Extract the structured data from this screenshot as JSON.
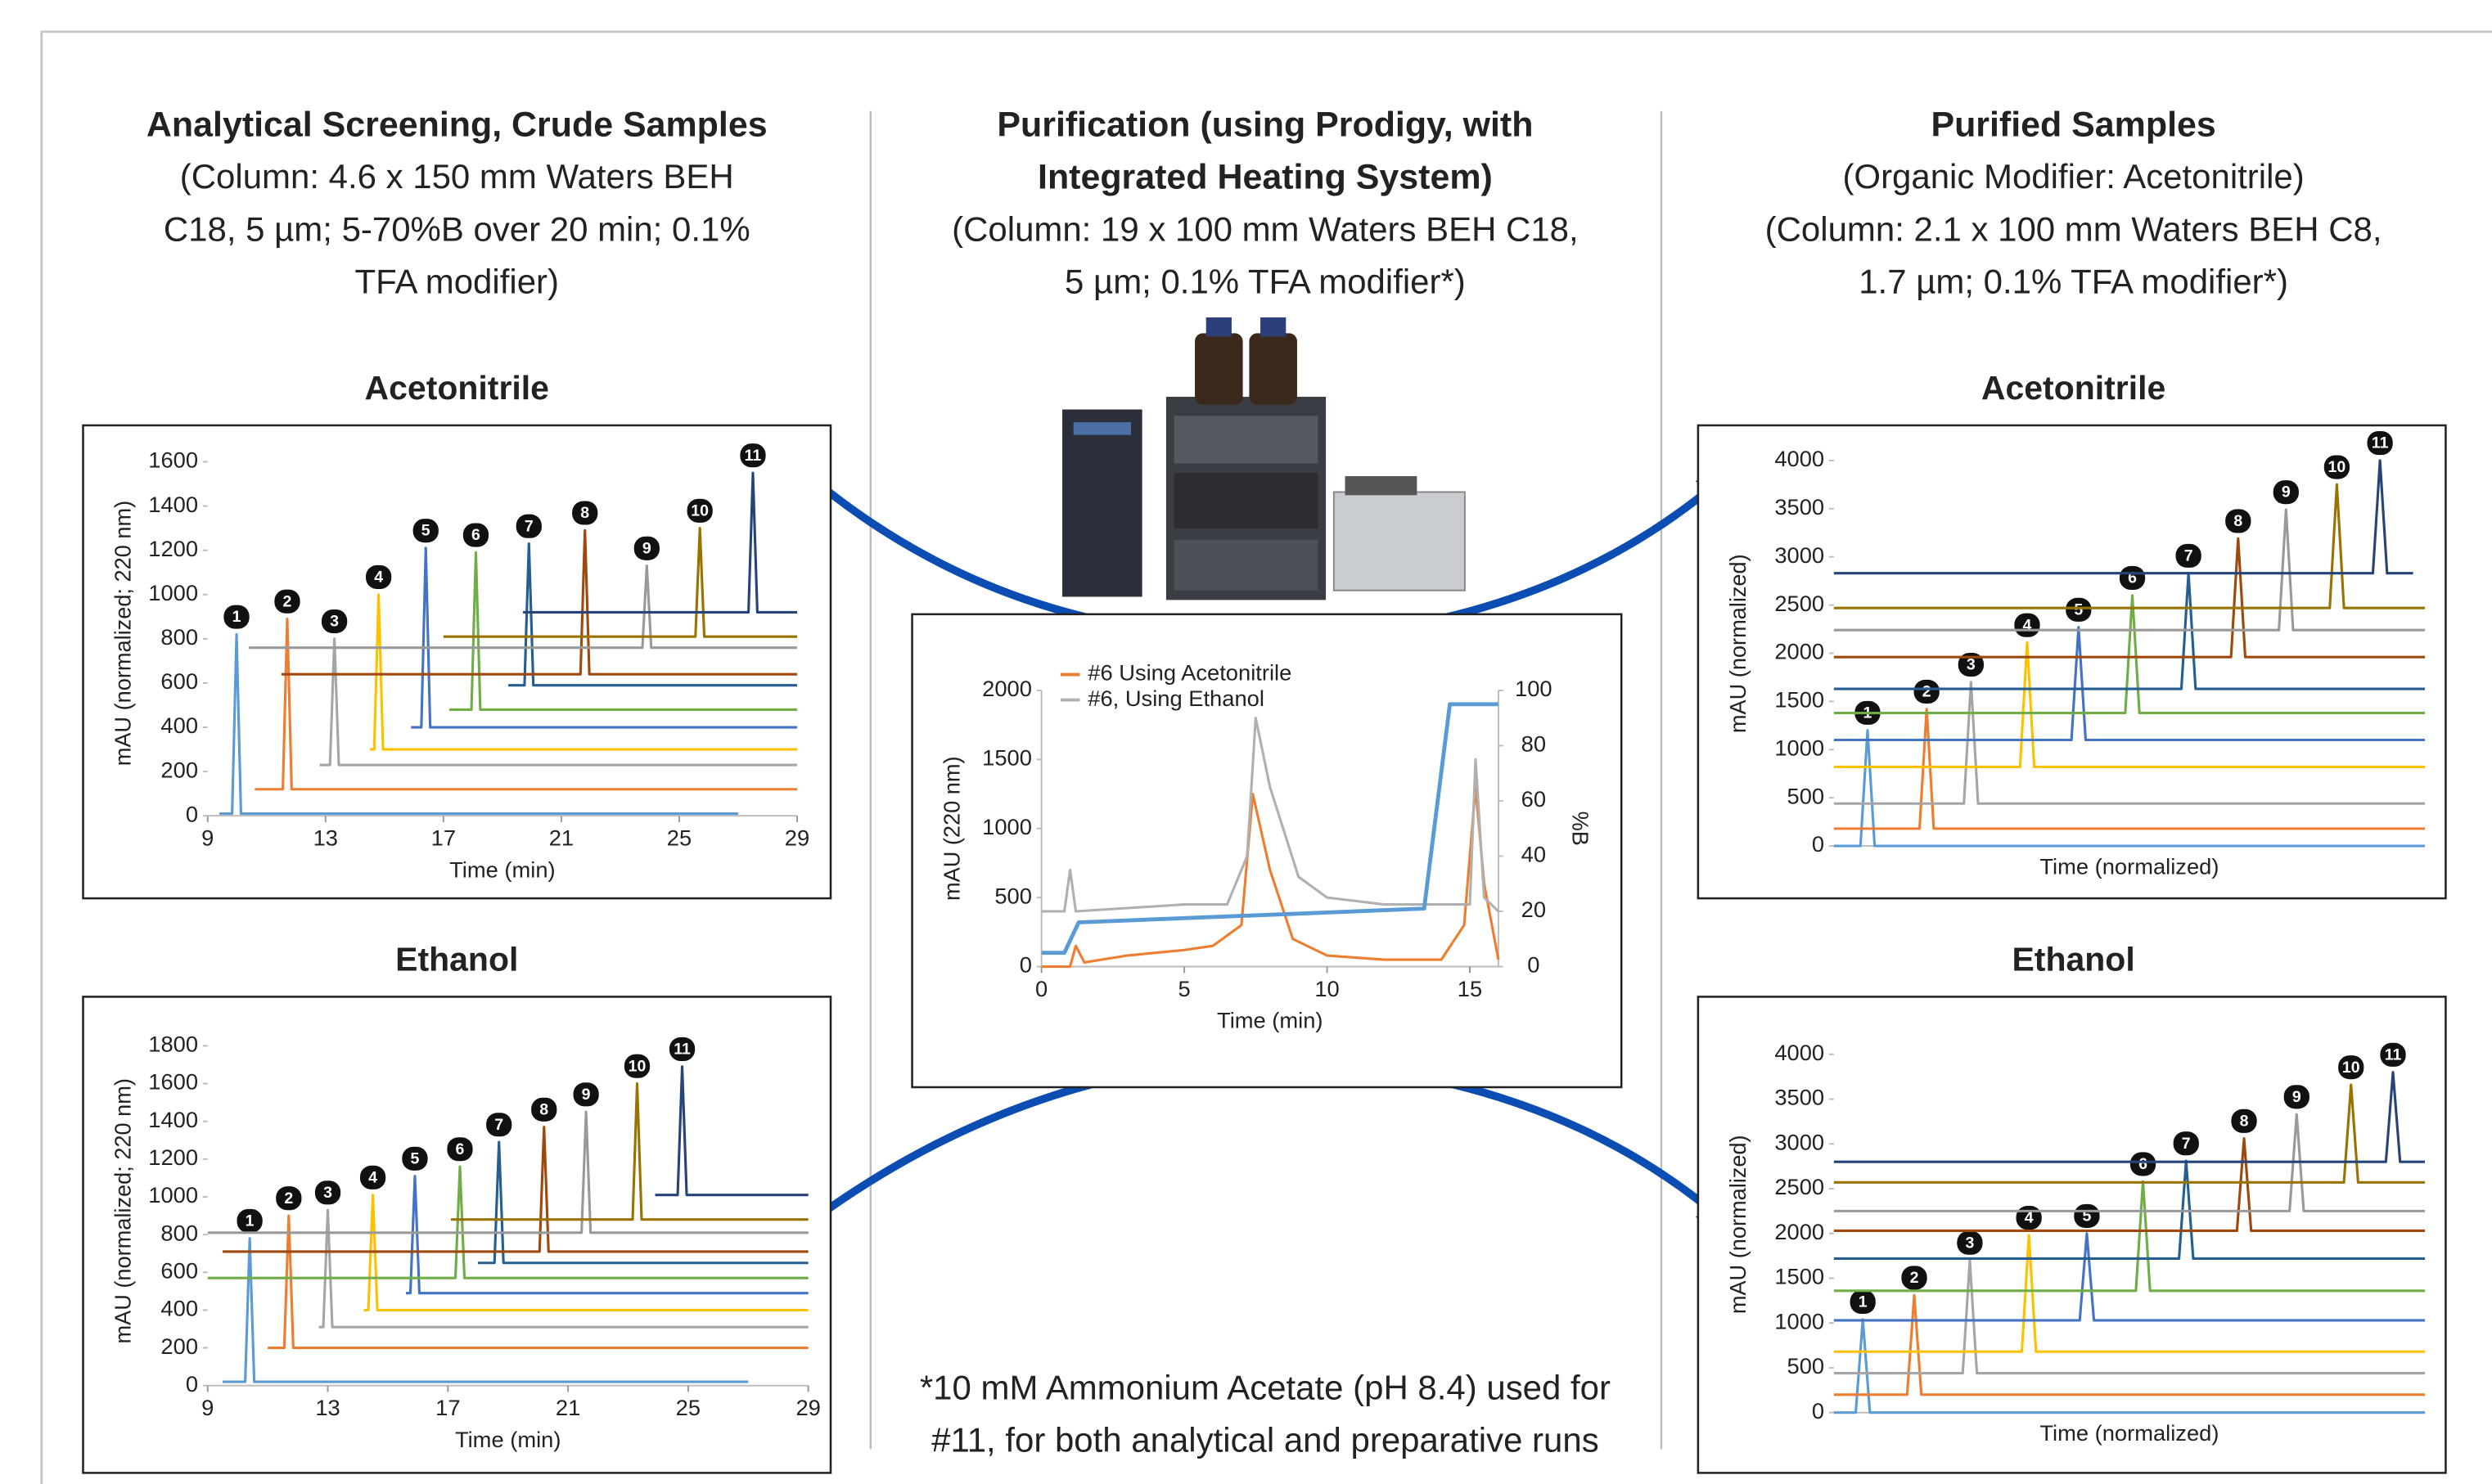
{
  "headers": {
    "left": {
      "title": "Analytical Screening, Crude Samples",
      "lines": [
        "(Column: 4.6 x 150 mm Waters BEH",
        "C18, 5 µm; 5-70%B over 20 min; 0.1%",
        "TFA modifier)"
      ]
    },
    "middle": {
      "title_lines": [
        "Purification (using Prodigy, with",
        "Integrated Heating System)"
      ],
      "lines": [
        "(Column: 19 x 100 mm Waters BEH C18,",
        "5 µm; 0.1% TFA modifier*)"
      ]
    },
    "right": {
      "title": "Purified Samples",
      "lines": [
        "(Organic Modifier: Acetonitrile)",
        "(Column: 2.1 x 100 mm Waters BEH C8,",
        "1.7 µm; 0.1% TFA modifier*)"
      ]
    }
  },
  "footnote": [
    "*10 mM Ammonium Acetate (pH 8.4) used for",
    "#11, for both analytical and preparative runs"
  ],
  "chart_data": [
    {
      "type": "line",
      "title": "Acetonitrile",
      "xlabel": "Time (min)",
      "ylabel": "mAU (normalized; 220 nm)",
      "xlim": [
        9,
        29
      ],
      "xticks": [
        9,
        13,
        17,
        21,
        25,
        29
      ],
      "ylim": [
        0,
        1650
      ],
      "yticks": [
        0,
        200,
        400,
        600,
        800,
        1000,
        1200,
        1400,
        1600
      ],
      "series": [
        {
          "label": "1",
          "color": "#5b9bd5",
          "x": [
            9.4,
            9.83,
            9.98,
            10.13,
            27
          ],
          "values": [
            10,
            10,
            820,
            10,
            10
          ]
        },
        {
          "label": "2",
          "color": "#ed7d31",
          "x": [
            10.6,
            11.55,
            11.7,
            11.85,
            29
          ],
          "values": [
            120,
            120,
            890,
            120,
            120
          ]
        },
        {
          "label": "3",
          "color": "#a5a5a5",
          "x": [
            12.8,
            13.15,
            13.3,
            13.45,
            29
          ],
          "values": [
            230,
            230,
            800,
            230,
            230
          ]
        },
        {
          "label": "4",
          "color": "#ffc000",
          "x": [
            14.5,
            14.65,
            14.8,
            14.95,
            29
          ],
          "values": [
            300,
            300,
            1000,
            300,
            300
          ]
        },
        {
          "label": "5",
          "color": "#4472c4",
          "x": [
            15.9,
            16.25,
            16.4,
            16.55,
            29
          ],
          "values": [
            400,
            400,
            1210,
            400,
            400
          ]
        },
        {
          "label": "6",
          "color": "#70ad47",
          "x": [
            17.2,
            17.95,
            18.1,
            18.25,
            29
          ],
          "values": [
            480,
            480,
            1190,
            480,
            480
          ]
        },
        {
          "label": "7",
          "color": "#255e91",
          "x": [
            19.2,
            19.75,
            19.9,
            20.05,
            29
          ],
          "values": [
            590,
            590,
            1230,
            590,
            590
          ]
        },
        {
          "label": "8",
          "color": "#9e480e",
          "x": [
            11.5,
            21.65,
            21.8,
            21.95,
            29
          ],
          "values": [
            640,
            640,
            1290,
            640,
            640
          ]
        },
        {
          "label": "9",
          "color": "#999999",
          "x": [
            10.4,
            23.75,
            23.9,
            24.05,
            29
          ],
          "values": [
            760,
            760,
            1130,
            760,
            760
          ]
        },
        {
          "label": "10",
          "color": "#997300",
          "x": [
            17.0,
            25.55,
            25.7,
            25.85,
            29
          ],
          "values": [
            810,
            810,
            1300,
            810,
            810
          ]
        },
        {
          "label": "11",
          "color": "#264478",
          "x": [
            19.7,
            27.35,
            27.5,
            27.65,
            29
          ],
          "values": [
            920,
            920,
            1550,
            920,
            920
          ]
        }
      ]
    },
    {
      "type": "line",
      "title": "Ethanol",
      "xlabel": "Time (min)",
      "ylabel": "mAU (normalized; 220 nm)",
      "xlim": [
        9,
        29
      ],
      "xticks": [
        9,
        13,
        17,
        21,
        25,
        29
      ],
      "ylim": [
        0,
        1850
      ],
      "yticks": [
        0,
        200,
        400,
        600,
        800,
        1000,
        1200,
        1400,
        1600,
        1800
      ],
      "series": [
        {
          "label": "1",
          "color": "#5b9bd5",
          "x": [
            9.5,
            10.25,
            10.4,
            10.55,
            27
          ],
          "values": [
            20,
            20,
            780,
            20,
            20
          ]
        },
        {
          "label": "2",
          "color": "#ed7d31",
          "x": [
            11.0,
            11.55,
            11.7,
            11.85,
            29
          ],
          "values": [
            200,
            200,
            900,
            200,
            200
          ]
        },
        {
          "label": "3",
          "color": "#a5a5a5",
          "x": [
            12.7,
            12.85,
            13.0,
            13.15,
            29
          ],
          "values": [
            310,
            310,
            930,
            310,
            310
          ]
        },
        {
          "label": "4",
          "color": "#ffc000",
          "x": [
            14.2,
            14.35,
            14.5,
            14.65,
            29
          ],
          "values": [
            400,
            400,
            1010,
            400,
            400
          ]
        },
        {
          "label": "5",
          "color": "#4472c4",
          "x": [
            15.6,
            15.75,
            15.9,
            16.05,
            29
          ],
          "values": [
            490,
            490,
            1110,
            490,
            490
          ]
        },
        {
          "label": "6",
          "color": "#70ad47",
          "x": [
            9,
            17.25,
            17.4,
            17.55,
            29
          ],
          "values": [
            570,
            570,
            1160,
            570,
            570
          ]
        },
        {
          "label": "7",
          "color": "#255e91",
          "x": [
            18,
            18.55,
            18.7,
            18.85,
            29
          ],
          "values": [
            650,
            650,
            1290,
            650,
            650
          ]
        },
        {
          "label": "8",
          "color": "#9e480e",
          "x": [
            9.5,
            20.05,
            20.2,
            20.35,
            29
          ],
          "values": [
            710,
            710,
            1370,
            710,
            710
          ]
        },
        {
          "label": "9",
          "color": "#999999",
          "x": [
            9,
            21.45,
            21.6,
            21.75,
            29
          ],
          "values": [
            810,
            810,
            1450,
            810,
            810
          ]
        },
        {
          "label": "10",
          "color": "#997300",
          "x": [
            17.1,
            23.15,
            23.3,
            23.45,
            29
          ],
          "values": [
            880,
            880,
            1600,
            880,
            880
          ]
        },
        {
          "label": "11",
          "color": "#264478",
          "x": [
            23.9,
            24.65,
            24.8,
            24.95,
            29
          ],
          "values": [
            1010,
            1010,
            1690,
            1010,
            1010
          ]
        }
      ]
    },
    {
      "type": "line",
      "xlabel": "Time (min)",
      "ylabel": "mAU (220 nm)",
      "y2label": "%B",
      "xlim": [
        0,
        16
      ],
      "xticks": [
        0,
        5,
        10,
        15
      ],
      "ylim": [
        0,
        2000
      ],
      "yticks": [
        0,
        500,
        1000,
        1500,
        2000
      ],
      "y2lim": [
        0,
        100
      ],
      "y2ticks": [
        0,
        20,
        40,
        60,
        80,
        100
      ],
      "series": [
        {
          "name": "#6  Using Acetonitrile",
          "color": "#ed7d31",
          "x": [
            0,
            1,
            1.2,
            1.5,
            3,
            5,
            6,
            7,
            7.4,
            8,
            8.8,
            10,
            12,
            14,
            14.8,
            15.2,
            15.5,
            16
          ],
          "values": [
            0,
            0,
            150,
            30,
            80,
            120,
            150,
            300,
            1250,
            700,
            200,
            80,
            50,
            50,
            300,
            1300,
            600,
            50
          ]
        },
        {
          "name": "#6, Using Ethanol",
          "color": "#b0b0b0",
          "x": [
            0,
            0.8,
            1,
            1.2,
            5,
            6.5,
            7.2,
            7.5,
            8,
            9,
            10,
            12,
            14,
            15,
            15.2,
            15.5,
            16
          ],
          "values": [
            400,
            400,
            700,
            400,
            450,
            450,
            800,
            1800,
            1300,
            650,
            500,
            450,
            450,
            450,
            1500,
            500,
            400
          ]
        },
        {
          "color": "#5b9bd5",
          "axis": "y2",
          "x": [
            0,
            0.8,
            1.3,
            13.4,
            14.3,
            16
          ],
          "values": [
            5,
            5,
            16,
            21,
            95,
            95
          ]
        }
      ]
    },
    {
      "type": "line",
      "title": "Acetonitrile",
      "xlabel": "Time (normalized)",
      "ylabel": "mAU (normalized)",
      "xlim": [
        0,
        1
      ],
      "ylim": [
        0,
        4200
      ],
      "yticks": [
        0,
        500,
        1000,
        1500,
        2000,
        2500,
        3000,
        3500,
        4000
      ],
      "series": [
        {
          "label": "1",
          "color": "#5b9bd5",
          "x": [
            0,
            0.045,
            0.057,
            0.069,
            1
          ],
          "values": [
            0,
            0,
            1200,
            0,
            0
          ]
        },
        {
          "label": "2",
          "color": "#ed7d31",
          "x": [
            0,
            0.145,
            0.157,
            0.169,
            1
          ],
          "values": [
            180,
            180,
            1420,
            180,
            180
          ]
        },
        {
          "label": "3",
          "color": "#a5a5a5",
          "x": [
            0,
            0.22,
            0.232,
            0.244,
            1
          ],
          "values": [
            440,
            440,
            1700,
            440,
            440
          ]
        },
        {
          "label": "4",
          "color": "#ffc000",
          "x": [
            0,
            0.315,
            0.327,
            0.339,
            1
          ],
          "values": [
            820,
            820,
            2110,
            820,
            820
          ]
        },
        {
          "label": "5",
          "color": "#4472c4",
          "x": [
            0,
            0.402,
            0.414,
            0.426,
            1
          ],
          "values": [
            1100,
            1100,
            2270,
            1100,
            1100
          ]
        },
        {
          "label": "6",
          "color": "#70ad47",
          "x": [
            0,
            0.493,
            0.505,
            0.517,
            1
          ],
          "values": [
            1380,
            1380,
            2600,
            1380,
            1380
          ]
        },
        {
          "label": "7",
          "color": "#255e91",
          "x": [
            0,
            0.588,
            0.6,
            0.612,
            1
          ],
          "values": [
            1630,
            1630,
            2830,
            1630,
            1630
          ]
        },
        {
          "label": "8",
          "color": "#9e480e",
          "x": [
            0,
            0.672,
            0.684,
            0.696,
            1
          ],
          "values": [
            1960,
            1960,
            3190,
            1960,
            1960
          ]
        },
        {
          "label": "9",
          "color": "#999999",
          "x": [
            0,
            0.753,
            0.765,
            0.777,
            1
          ],
          "values": [
            2240,
            2240,
            3490,
            2240,
            2240
          ]
        },
        {
          "label": "10",
          "color": "#997300",
          "x": [
            0,
            0.839,
            0.851,
            0.863,
            1
          ],
          "values": [
            2470,
            2470,
            3750,
            2470,
            2470
          ]
        },
        {
          "label": "11",
          "color": "#264478",
          "x": [
            0,
            0.912,
            0.924,
            0.936,
            0.98
          ],
          "values": [
            2830,
            2830,
            4000,
            2830,
            2830
          ]
        }
      ]
    },
    {
      "type": "line",
      "title": "Ethanol",
      "xlabel": "Time (normalized)",
      "ylabel": "mAU (normalized)",
      "xlim": [
        0,
        1
      ],
      "ylim": [
        0,
        4200
      ],
      "yticks": [
        0,
        500,
        1000,
        1500,
        2000,
        2500,
        3000,
        3500,
        4000
      ],
      "series": [
        {
          "label": "1",
          "color": "#5b9bd5",
          "x": [
            0,
            0.037,
            0.049,
            0.061,
            1
          ],
          "values": [
            0,
            0,
            1040,
            0,
            0
          ]
        },
        {
          "label": "2",
          "color": "#ed7d31",
          "x": [
            0,
            0.124,
            0.136,
            0.148,
            1
          ],
          "values": [
            200,
            200,
            1310,
            200,
            200
          ]
        },
        {
          "label": "3",
          "color": "#a5a5a5",
          "x": [
            0,
            0.218,
            0.23,
            0.242,
            1
          ],
          "values": [
            440,
            440,
            1700,
            440,
            440
          ]
        },
        {
          "label": "4",
          "color": "#ffc000",
          "x": [
            0,
            0.318,
            0.33,
            0.342,
            1
          ],
          "values": [
            680,
            680,
            1980,
            680,
            680
          ]
        },
        {
          "label": "5",
          "color": "#4472c4",
          "x": [
            0,
            0.416,
            0.428,
            0.44,
            1
          ],
          "values": [
            1030,
            1030,
            2000,
            1030,
            1030
          ]
        },
        {
          "label": "6",
          "color": "#70ad47",
          "x": [
            0,
            0.511,
            0.523,
            0.535,
            1
          ],
          "values": [
            1360,
            1360,
            2580,
            1360,
            1360
          ]
        },
        {
          "label": "7",
          "color": "#255e91",
          "x": [
            0,
            0.584,
            0.596,
            0.608,
            1
          ],
          "values": [
            1720,
            1720,
            2810,
            1720,
            1720
          ]
        },
        {
          "label": "8",
          "color": "#9e480e",
          "x": [
            0,
            0.682,
            0.694,
            0.706,
            1
          ],
          "values": [
            2030,
            2030,
            3060,
            2030,
            2030
          ]
        },
        {
          "label": "9",
          "color": "#999999",
          "x": [
            0,
            0.771,
            0.783,
            0.795,
            1
          ],
          "values": [
            2250,
            2250,
            3330,
            2250,
            2250
          ]
        },
        {
          "label": "10",
          "color": "#997300",
          "x": [
            0,
            0.863,
            0.875,
            0.887,
            1
          ],
          "values": [
            2570,
            2570,
            3660,
            2570,
            2570
          ]
        },
        {
          "label": "11",
          "color": "#264478",
          "x": [
            0,
            0.934,
            0.946,
            0.958,
            1
          ],
          "values": [
            2800,
            2800,
            3800,
            2800,
            2800
          ]
        }
      ]
    }
  ]
}
